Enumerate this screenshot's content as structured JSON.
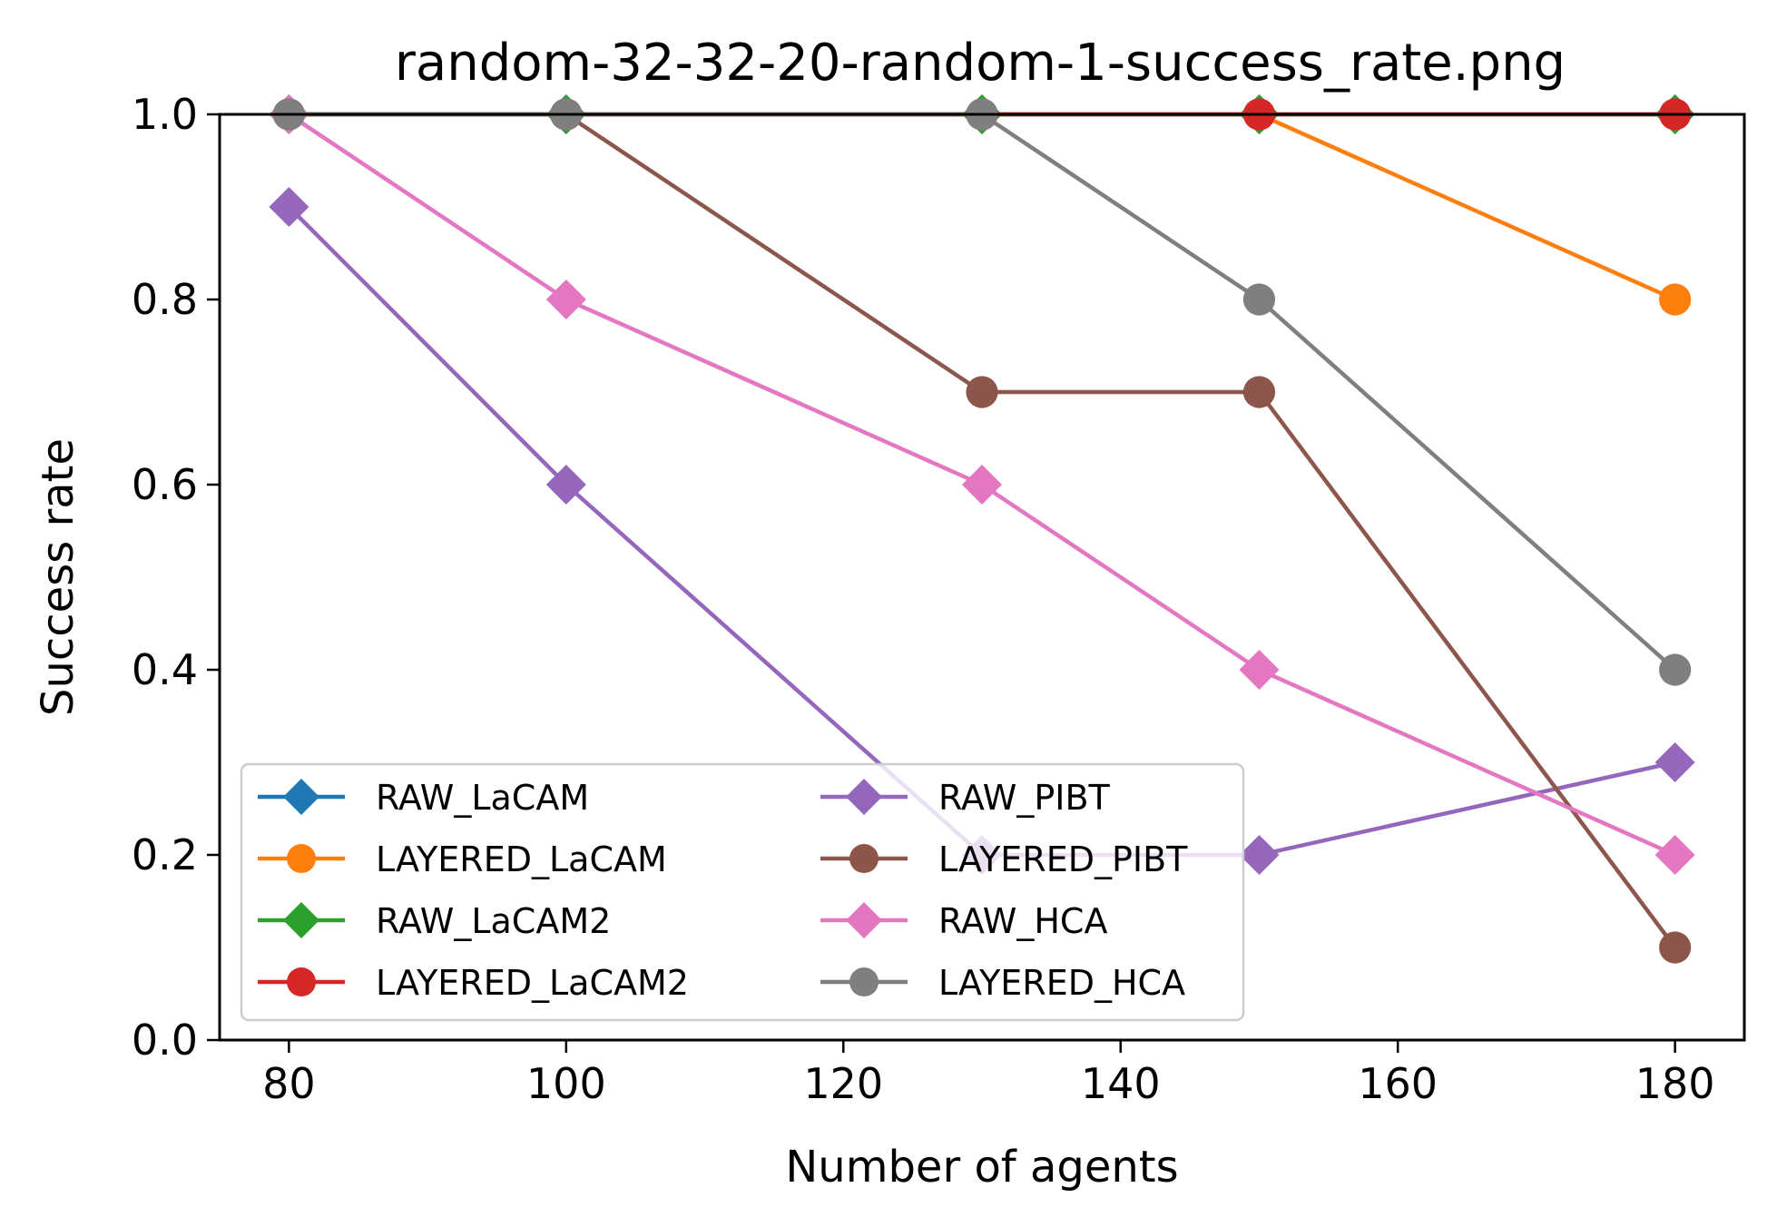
{
  "chart_data": {
    "type": "line",
    "title": "random-32-32-20-random-1-success_rate.png",
    "xlabel": "Number of agents",
    "ylabel": "Success rate",
    "xlim": [
      75,
      185
    ],
    "ylim": [
      0.0,
      1.0
    ],
    "x": [
      80,
      100,
      130,
      150,
      180
    ],
    "xticks": [
      80,
      100,
      120,
      140,
      160,
      180
    ],
    "xtick_labels": [
      "80",
      "100",
      "120",
      "140",
      "160",
      "180"
    ],
    "yticks": [
      0.0,
      0.2,
      0.4,
      0.6,
      0.8,
      1.0
    ],
    "ytick_labels": [
      "0.0",
      "0.2",
      "0.4",
      "0.6",
      "0.8",
      "1.0"
    ],
    "grid": false,
    "legend_position": "bottom-left",
    "legend_columns": 2,
    "series": [
      {
        "name": "RAW_LaCAM",
        "color": "#1f77b4",
        "marker": "diamond",
        "values": [
          1.0,
          1.0,
          1.0,
          1.0,
          1.0
        ]
      },
      {
        "name": "LAYERED_LaCAM",
        "color": "#ff7f0e",
        "marker": "circle",
        "values": [
          1.0,
          1.0,
          1.0,
          1.0,
          0.8
        ]
      },
      {
        "name": "RAW_LaCAM2",
        "color": "#2ca02c",
        "marker": "diamond",
        "values": [
          1.0,
          1.0,
          1.0,
          1.0,
          1.0
        ]
      },
      {
        "name": "LAYERED_LaCAM2",
        "color": "#d62728",
        "marker": "circle",
        "values": [
          1.0,
          1.0,
          1.0,
          1.0,
          1.0
        ]
      },
      {
        "name": "RAW_PIBT",
        "color": "#9467bd",
        "marker": "diamond",
        "values": [
          0.9,
          0.6,
          0.2,
          0.2,
          0.3
        ]
      },
      {
        "name": "LAYERED_PIBT",
        "color": "#8c564b",
        "marker": "circle",
        "values": [
          1.0,
          1.0,
          0.7,
          0.7,
          0.1
        ]
      },
      {
        "name": "RAW_HCA",
        "color": "#e377c2",
        "marker": "diamond",
        "values": [
          1.0,
          0.8,
          0.6,
          0.4,
          0.2
        ]
      },
      {
        "name": "LAYERED_HCA",
        "color": "#7f7f7f",
        "marker": "circle",
        "values": [
          1.0,
          1.0,
          1.0,
          0.8,
          0.4
        ]
      }
    ]
  }
}
